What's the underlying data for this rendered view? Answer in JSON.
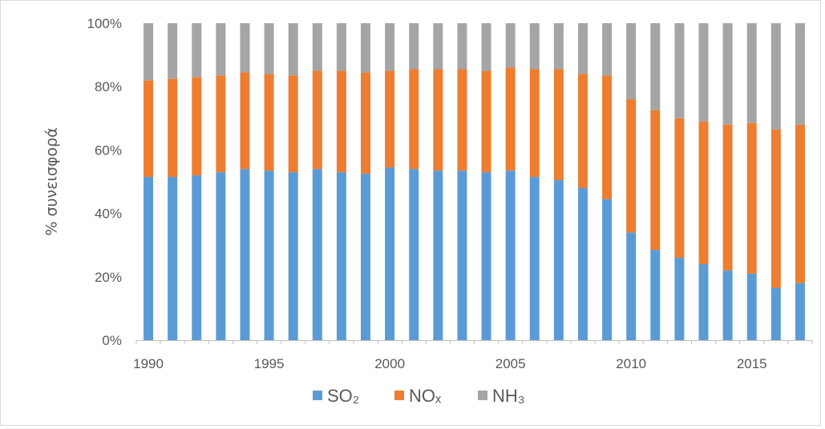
{
  "chart_data": {
    "type": "bar",
    "stacked": true,
    "ylabel": "% συνεισφορά",
    "xlabel": "",
    "ylim": [
      0,
      100
    ],
    "y_ticks": [
      "0%",
      "20%",
      "40%",
      "60%",
      "80%",
      "100%"
    ],
    "x_ticks": [
      "1990",
      "1995",
      "2000",
      "2005",
      "2010",
      "2015"
    ],
    "categories": [
      1990,
      1991,
      1992,
      1993,
      1994,
      1995,
      1996,
      1997,
      1998,
      1999,
      2000,
      2001,
      2002,
      2003,
      2004,
      2005,
      2006,
      2007,
      2008,
      2009,
      2010,
      2011,
      2012,
      2013,
      2014,
      2015,
      2016,
      2017
    ],
    "series": [
      {
        "name": "SO₂",
        "color": "#5b9bd5",
        "values": [
          51.5,
          51.5,
          52,
          53,
          54,
          53.5,
          53,
          54,
          53,
          52.5,
          54.5,
          54,
          53.5,
          53.5,
          53,
          53.5,
          51.5,
          50.5,
          48,
          44.5,
          34,
          28.5,
          26,
          24,
          22,
          21,
          16.5,
          18
        ]
      },
      {
        "name": "NOₓ",
        "color": "#ed7d31",
        "values": [
          30.5,
          31,
          31,
          30.5,
          30.5,
          30.5,
          30.5,
          31,
          32,
          32,
          30.5,
          31.5,
          32,
          32,
          32,
          32.5,
          34,
          35,
          36,
          39,
          42,
          44,
          44,
          45,
          46,
          47.5,
          50,
          50
        ]
      },
      {
        "name": "NH₃",
        "color": "#a5a5a5",
        "values": [
          18,
          17.5,
          17,
          16.5,
          15.5,
          16,
          16.5,
          15,
          15,
          15.5,
          15,
          14.5,
          14.5,
          14.5,
          15,
          14,
          14.5,
          14.5,
          16,
          16.5,
          24,
          27.5,
          30,
          31,
          32,
          31.5,
          33.5,
          32
        ]
      }
    ],
    "legend_position": "bottom",
    "grid": false
  }
}
